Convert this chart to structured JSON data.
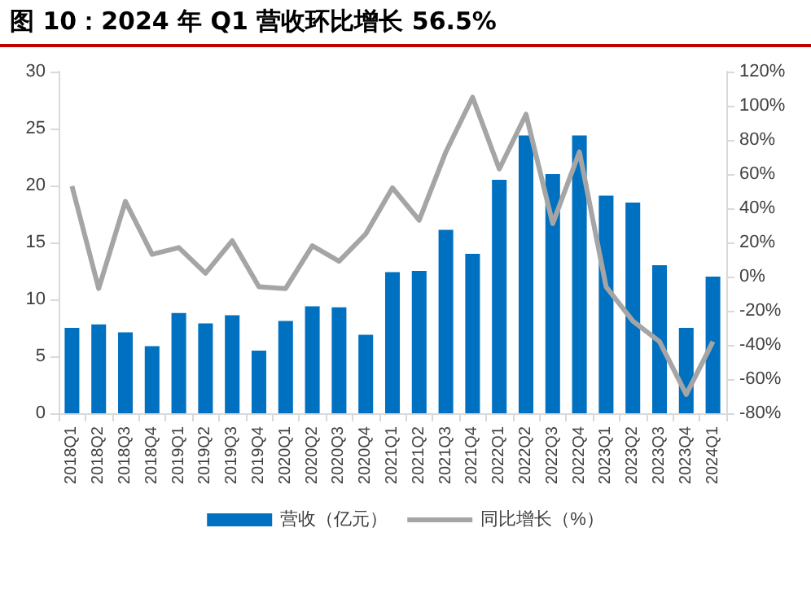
{
  "chart_data": {
    "type": "bar",
    "title": "图 10：2024 年 Q1 营收环比增长 56.5%",
    "categories": [
      "2018Q1",
      "2018Q2",
      "2018Q3",
      "2018Q4",
      "2019Q1",
      "2019Q2",
      "2019Q3",
      "2019Q4",
      "2020Q1",
      "2020Q2",
      "2020Q3",
      "2020Q4",
      "2021Q1",
      "2021Q2",
      "2021Q3",
      "2021Q4",
      "2022Q1",
      "2022Q2",
      "2022Q3",
      "2022Q4",
      "2023Q1",
      "2023Q2",
      "2023Q3",
      "2023Q4",
      "2024Q1"
    ],
    "series": [
      {
        "name": "营收（亿元）",
        "color": "#0070c0",
        "values": [
          7.5,
          7.8,
          7.1,
          5.9,
          8.8,
          7.9,
          8.6,
          5.5,
          8.1,
          9.4,
          9.3,
          6.9,
          12.4,
          12.5,
          16.1,
          14.0,
          20.5,
          24.4,
          21.0,
          24.4,
          19.1,
          18.5,
          13.0,
          7.5,
          12.0
        ]
      },
      {
        "name": "同比增长（%）",
        "type": "line",
        "axis": "y2",
        "color": "#a5a5a5",
        "values": [
          53,
          -7,
          44,
          13,
          17,
          2,
          21,
          -6,
          -7,
          18,
          9,
          25,
          52,
          33,
          73,
          105,
          63,
          95,
          31,
          73,
          -6,
          -26,
          -38,
          -69,
          -38
        ]
      }
    ],
    "ylim": [
      0,
      30
    ],
    "yticks": [
      0,
      5,
      10,
      15,
      20,
      25,
      30
    ],
    "y2lim": [
      -80,
      120
    ],
    "y2ticks": [
      {
        "value": -80,
        "label": "-80%"
      },
      {
        "value": -60,
        "label": "-60%"
      },
      {
        "value": -40,
        "label": "-40%"
      },
      {
        "value": -20,
        "label": "-20%"
      },
      {
        "value": 0,
        "label": "0%"
      },
      {
        "value": 20,
        "label": "20%"
      },
      {
        "value": 40,
        "label": "40%"
      },
      {
        "value": 60,
        "label": "60%"
      },
      {
        "value": 80,
        "label": "80%"
      },
      {
        "value": 100,
        "label": "100%"
      },
      {
        "value": 120,
        "label": "120%"
      }
    ],
    "grid": false,
    "legend": "bottom",
    "marker": "none",
    "line_style": "solid"
  }
}
